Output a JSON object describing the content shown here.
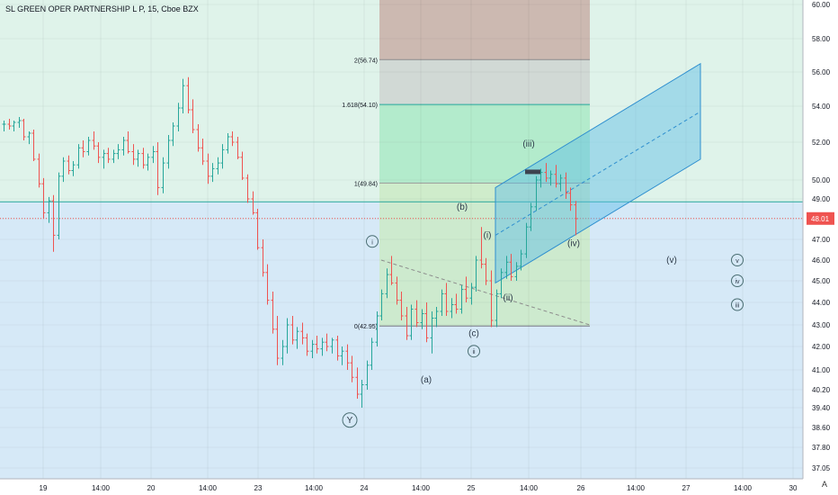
{
  "title": "SL GREEN OPER PARTNERSHIP L P, 15, Cboe BZX",
  "auto_label": "A",
  "colors": {
    "up": "#26a69a",
    "down": "#ef5350",
    "zone_green": "#dff3ea",
    "zone_blue": "#d6e9f7",
    "box_red": "#c9aea7",
    "box_green": "#a7e9c4",
    "box_grey": "#cfd6d3",
    "channel": "#2f8fcf",
    "hline": "#26a69a",
    "price_line": "#ef5350"
  },
  "chart_data": {
    "type": "candlestick",
    "y_axis": {
      "ylim": [
        36.8,
        60.2
      ],
      "tick_labels": [
        "60.00",
        "58.00",
        "56.00",
        "54.00",
        "52.00",
        "50.00",
        "49.00",
        "48.00",
        "47.00",
        "46.00",
        "45.00",
        "44.00",
        "43.00",
        "42.00",
        "41.00",
        "40.20",
        "39.40",
        "38.60",
        "37.80",
        "37.05"
      ],
      "tick_values": [
        60.0,
        58.0,
        56.0,
        54.0,
        52.0,
        50.0,
        49.0,
        48.0,
        47.0,
        46.0,
        45.0,
        44.0,
        43.0,
        42.0,
        41.0,
        40.2,
        39.4,
        38.6,
        37.8,
        37.05
      ]
    },
    "x_axis": {
      "tick_labels": [
        "19",
        "14:00",
        "20",
        "14:00",
        "23",
        "14:00",
        "24",
        "14:00",
        "25",
        "14:00",
        "26",
        "14:00",
        "27",
        "14:00",
        "30"
      ]
    },
    "last_price": {
      "value": 48.01,
      "label": "48.01"
    },
    "horizontal_levels": [
      48.85
    ],
    "fibonacci": {
      "levels": [
        {
          "label": "2(56.74)",
          "value": 56.74
        },
        {
          "label": "1.618(54.10)",
          "value": 54.1
        },
        {
          "label": "1(49.84)",
          "value": 49.84
        },
        {
          "label": "0(42.95)",
          "value": 42.95
        }
      ]
    },
    "annotations": [
      {
        "text": "(b)",
        "value": 48.6
      },
      {
        "text": "(iii)",
        "value": 51.9
      },
      {
        "text": "(i)",
        "value": 47.2
      },
      {
        "text": "(iv)",
        "value": 46.8
      },
      {
        "text": "(ii)",
        "value": 44.2
      },
      {
        "text": "(c)",
        "value": 42.6
      },
      {
        "text": "(a)",
        "value": 40.6
      },
      {
        "text": "(v)",
        "value": 46.0
      },
      {
        "text": "Ⓨ",
        "value": 38.9
      },
      {
        "text": "ⓘ",
        "value": 46.9
      },
      {
        "text": "ⓘⓘ",
        "value": 41.8
      },
      {
        "text": "ⓥ",
        "value": 46.0
      },
      {
        "text": "ⓘⓥ",
        "value": 45.0
      },
      {
        "text": "ⓘⓘⓘ",
        "value": 43.9
      }
    ],
    "candles": [
      [
        53.0,
        53.2,
        52.6,
        53.0
      ],
      [
        53.0,
        53.3,
        52.7,
        52.9
      ],
      [
        52.9,
        53.2,
        52.6,
        53.1
      ],
      [
        53.1,
        53.4,
        52.8,
        53.2
      ],
      [
        53.2,
        53.3,
        52.1,
        52.3
      ],
      [
        52.3,
        52.6,
        51.9,
        52.5
      ],
      [
        52.5,
        52.7,
        51.0,
        51.1
      ],
      [
        51.1,
        51.4,
        49.6,
        49.8
      ],
      [
        49.8,
        50.1,
        48.0,
        48.3
      ],
      [
        48.3,
        49.1,
        47.8,
        48.9
      ],
      [
        48.9,
        49.2,
        46.4,
        47.2
      ],
      [
        47.2,
        50.4,
        47.0,
        50.2
      ],
      [
        50.2,
        51.2,
        49.9,
        51.0
      ],
      [
        51.0,
        51.3,
        50.3,
        50.5
      ],
      [
        50.5,
        51.0,
        50.2,
        50.8
      ],
      [
        50.8,
        51.9,
        50.6,
        51.7
      ],
      [
        51.7,
        52.1,
        51.2,
        51.5
      ],
      [
        51.5,
        52.3,
        51.3,
        52.1
      ],
      [
        52.1,
        52.6,
        51.6,
        51.8
      ],
      [
        51.8,
        52.0,
        50.9,
        51.2
      ],
      [
        51.2,
        51.6,
        50.6,
        51.4
      ],
      [
        51.4,
        51.7,
        50.9,
        51.1
      ],
      [
        51.1,
        51.6,
        50.9,
        51.4
      ],
      [
        51.4,
        51.9,
        51.1,
        51.6
      ],
      [
        51.6,
        52.3,
        51.3,
        52.1
      ],
      [
        52.1,
        52.6,
        51.4,
        51.5
      ],
      [
        51.5,
        51.9,
        50.8,
        51.1
      ],
      [
        51.1,
        51.6,
        50.7,
        51.4
      ],
      [
        51.4,
        51.7,
        50.6,
        50.8
      ],
      [
        50.8,
        51.4,
        50.5,
        51.2
      ],
      [
        51.2,
        51.8,
        50.9,
        51.5
      ],
      [
        51.5,
        52.0,
        49.2,
        49.6
      ],
      [
        49.6,
        51.2,
        49.3,
        50.9
      ],
      [
        50.9,
        52.4,
        50.6,
        52.1
      ],
      [
        52.1,
        53.1,
        51.8,
        52.9
      ],
      [
        52.9,
        54.2,
        52.6,
        53.9
      ],
      [
        53.9,
        55.6,
        53.6,
        55.2
      ],
      [
        55.2,
        55.7,
        53.6,
        53.8
      ],
      [
        53.8,
        54.4,
        52.5,
        52.7
      ],
      [
        52.7,
        53.0,
        51.5,
        51.7
      ],
      [
        51.7,
        52.2,
        50.8,
        51.0
      ],
      [
        51.0,
        51.4,
        49.8,
        50.2
      ],
      [
        50.2,
        50.9,
        49.9,
        50.6
      ],
      [
        50.6,
        51.2,
        50.3,
        50.9
      ],
      [
        50.9,
        51.9,
        50.6,
        51.6
      ],
      [
        51.6,
        52.5,
        51.4,
        52.3
      ],
      [
        52.3,
        52.6,
        51.8,
        52.0
      ],
      [
        52.0,
        52.3,
        51.1,
        51.2
      ],
      [
        51.2,
        51.5,
        50.0,
        50.1
      ],
      [
        50.1,
        50.3,
        48.8,
        49.0
      ],
      [
        49.0,
        49.4,
        48.2,
        48.3
      ],
      [
        48.3,
        48.5,
        46.5,
        46.6
      ],
      [
        46.6,
        47.0,
        45.2,
        45.4
      ],
      [
        45.4,
        45.8,
        43.9,
        44.1
      ],
      [
        44.1,
        44.5,
        42.6,
        42.8
      ],
      [
        42.8,
        43.4,
        41.2,
        41.5
      ],
      [
        41.5,
        42.3,
        41.2,
        42.0
      ],
      [
        42.0,
        43.3,
        41.7,
        43.0
      ],
      [
        43.0,
        43.4,
        42.1,
        42.3
      ],
      [
        42.3,
        42.9,
        41.9,
        42.7
      ],
      [
        42.7,
        43.1,
        42.1,
        42.4
      ],
      [
        42.4,
        42.6,
        41.6,
        41.8
      ],
      [
        41.8,
        42.3,
        41.5,
        42.1
      ],
      [
        42.1,
        42.5,
        41.7,
        41.9
      ],
      [
        41.9,
        42.4,
        41.6,
        42.2
      ],
      [
        42.2,
        42.6,
        41.8,
        42.0
      ],
      [
        42.0,
        42.4,
        41.7,
        42.3
      ],
      [
        42.3,
        42.5,
        41.4,
        41.6
      ],
      [
        41.6,
        42.0,
        41.2,
        41.8
      ],
      [
        41.8,
        42.1,
        41.0,
        41.3
      ],
      [
        41.3,
        41.6,
        40.5,
        40.7
      ],
      [
        40.7,
        41.1,
        39.8,
        40.0
      ],
      [
        40.0,
        40.6,
        39.4,
        40.4
      ],
      [
        40.4,
        41.4,
        40.2,
        41.2
      ],
      [
        41.2,
        42.4,
        41.0,
        42.2
      ],
      [
        42.2,
        43.6,
        42.0,
        43.4
      ],
      [
        43.4,
        44.6,
        43.2,
        44.4
      ],
      [
        44.4,
        45.6,
        44.2,
        45.3
      ],
      [
        45.3,
        46.2,
        44.8,
        44.9
      ],
      [
        44.9,
        45.2,
        43.9,
        44.1
      ],
      [
        44.1,
        44.5,
        43.2,
        43.4
      ],
      [
        43.4,
        43.8,
        42.3,
        42.5
      ],
      [
        42.5,
        43.9,
        42.3,
        43.7
      ],
      [
        43.7,
        44.1,
        42.9,
        43.1
      ],
      [
        43.1,
        43.7,
        42.8,
        43.5
      ],
      [
        43.5,
        44.0,
        42.2,
        42.4
      ],
      [
        42.4,
        43.6,
        41.7,
        43.3
      ],
      [
        43.3,
        43.8,
        42.9,
        43.6
      ],
      [
        43.6,
        44.6,
        43.4,
        44.4
      ],
      [
        44.4,
        44.9,
        43.4,
        43.6
      ],
      [
        43.6,
        44.2,
        43.3,
        43.9
      ],
      [
        43.9,
        44.4,
        43.5,
        43.7
      ],
      [
        43.7,
        44.8,
        43.5,
        44.6
      ],
      [
        44.6,
        45.2,
        44.0,
        44.2
      ],
      [
        44.2,
        44.9,
        43.9,
        44.7
      ],
      [
        44.7,
        46.2,
        44.5,
        46.0
      ],
      [
        46.0,
        47.6,
        45.6,
        45.8
      ],
      [
        45.8,
        46.1,
        44.8,
        45.0
      ],
      [
        45.0,
        45.5,
        42.9,
        43.2
      ],
      [
        43.2,
        44.6,
        42.9,
        44.4
      ],
      [
        44.4,
        45.6,
        44.2,
        45.4
      ],
      [
        45.4,
        46.2,
        45.1,
        45.9
      ],
      [
        45.9,
        46.3,
        45.0,
        45.2
      ],
      [
        45.2,
        45.9,
        45.0,
        45.7
      ],
      [
        45.7,
        46.5,
        45.5,
        46.3
      ],
      [
        46.3,
        47.8,
        46.1,
        47.6
      ],
      [
        47.6,
        48.8,
        47.4,
        48.6
      ],
      [
        48.6,
        50.2,
        48.4,
        50.0
      ],
      [
        50.0,
        50.6,
        49.6,
        50.4
      ],
      [
        50.4,
        50.9,
        49.9,
        50.1
      ],
      [
        50.1,
        50.5,
        49.7,
        50.3
      ],
      [
        50.3,
        50.8,
        49.6,
        49.8
      ],
      [
        49.8,
        50.3,
        49.4,
        50.1
      ],
      [
        50.1,
        50.4,
        49.0,
        49.3
      ],
      [
        49.3,
        49.6,
        48.4,
        48.7
      ],
      [
        48.7,
        48.9,
        47.2,
        48.0
      ]
    ]
  }
}
